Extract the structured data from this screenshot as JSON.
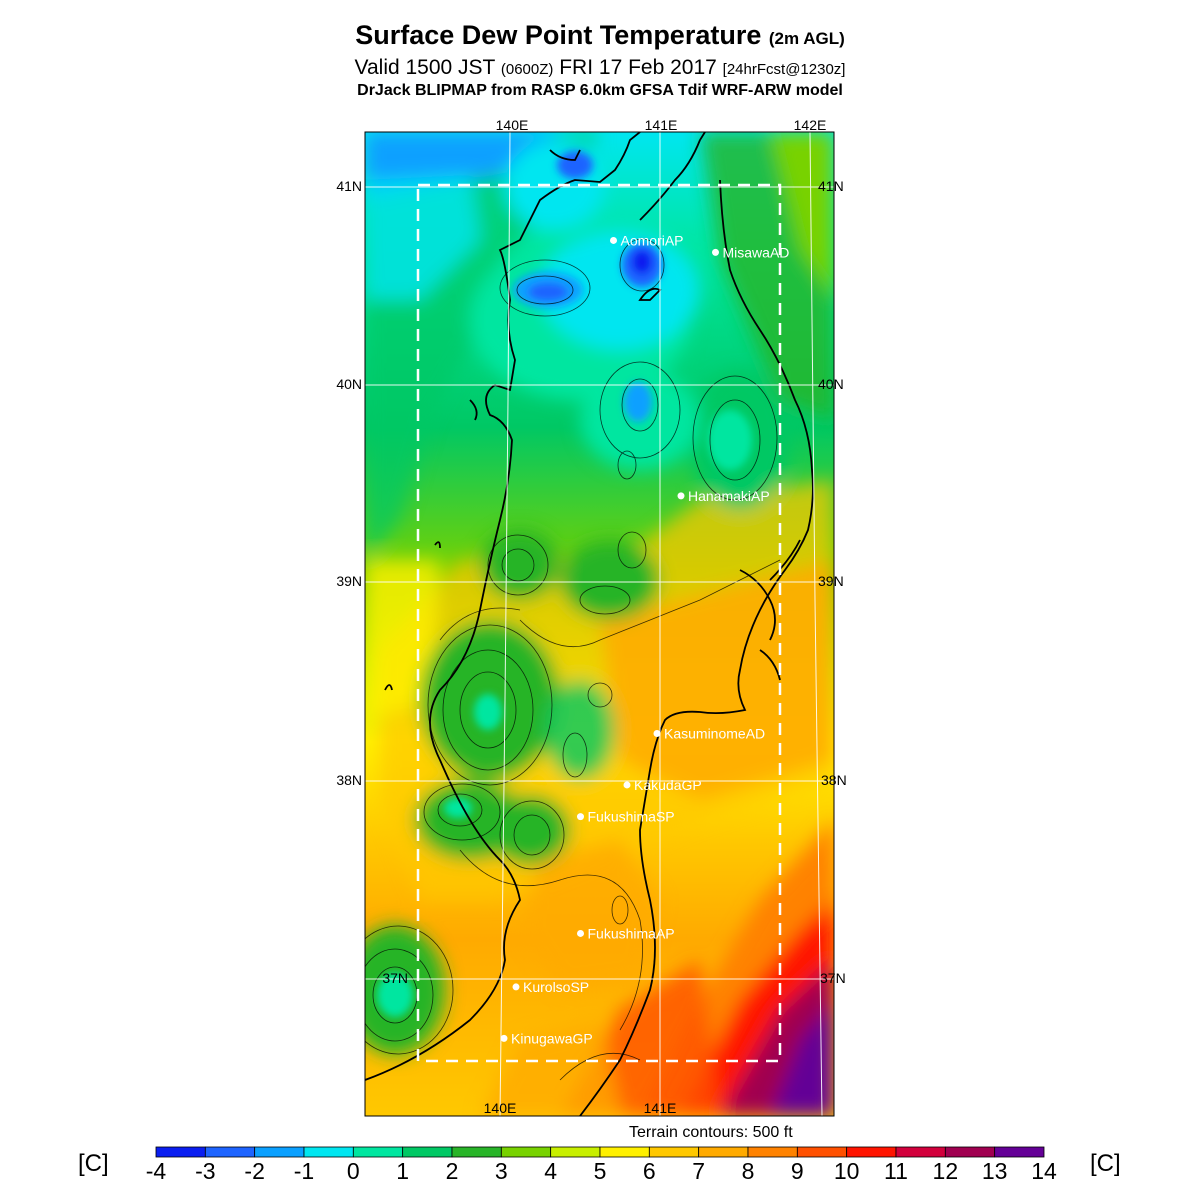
{
  "title": {
    "main": "Surface Dew Point Temperature",
    "main_suffix": "(2m AGL)",
    "valid_prefix": "Valid 1500 JST",
    "valid_z": "(0600Z)",
    "valid_date": "FRI 17 Feb 2017",
    "valid_fcst": "[24hrFcst@1230z]",
    "model": "DrJack BLIPMAP from RASP 6.0km GFSA Tdif WRF-ARW model"
  },
  "axes": {
    "lon_top": [
      "140E",
      "141E",
      "142E"
    ],
    "lon_bottom": [
      "140E",
      "141E"
    ],
    "lat_left": [
      "41N",
      "40N",
      "39N",
      "38N",
      "37N"
    ],
    "lat_right": [
      "41N",
      "40N",
      "39N",
      "38N",
      "37N"
    ]
  },
  "stations": [
    {
      "name": "AomoriAP",
      "lon": 140.69,
      "lat": 40.73
    },
    {
      "name": "MisawaAD",
      "lon": 141.37,
      "lat": 40.67
    },
    {
      "name": "HanamakiAP",
      "lon": 141.14,
      "lat": 39.44
    },
    {
      "name": "KasuminomeAD",
      "lon": 140.98,
      "lat": 38.24
    },
    {
      "name": "KakudaGP",
      "lon": 140.78,
      "lat": 37.98
    },
    {
      "name": "FukushimaSP",
      "lon": 140.47,
      "lat": 37.82
    },
    {
      "name": "FukushimaAP",
      "lon": 140.47,
      "lat": 37.23
    },
    {
      "name": "KurolsoSP",
      "lon": 140.04,
      "lat": 36.96
    },
    {
      "name": "KinugawaGP",
      "lon": 139.96,
      "lat": 36.7
    }
  ],
  "terrain_note": "Terrain contours: 500 ft",
  "colorbar": {
    "unit": "[C]",
    "ticks": [
      "-4",
      "-3",
      "-2",
      "-1",
      "0",
      "1",
      "2",
      "3",
      "4",
      "5",
      "6",
      "7",
      "8",
      "9",
      "10",
      "11",
      "12",
      "13",
      "14"
    ],
    "colors": [
      "#0a1ef0",
      "#1e64ff",
      "#0aa0ff",
      "#00e6f0",
      "#00e6a0",
      "#00c864",
      "#28b428",
      "#78d200",
      "#c8ef00",
      "#fff000",
      "#ffc800",
      "#ffaa00",
      "#ff8200",
      "#ff5000",
      "#ff1400",
      "#d2003c",
      "#a00050",
      "#640096"
    ]
  },
  "colors": {
    "background": "#ffffff",
    "coast": "#000000",
    "grid": "#ffffff"
  }
}
